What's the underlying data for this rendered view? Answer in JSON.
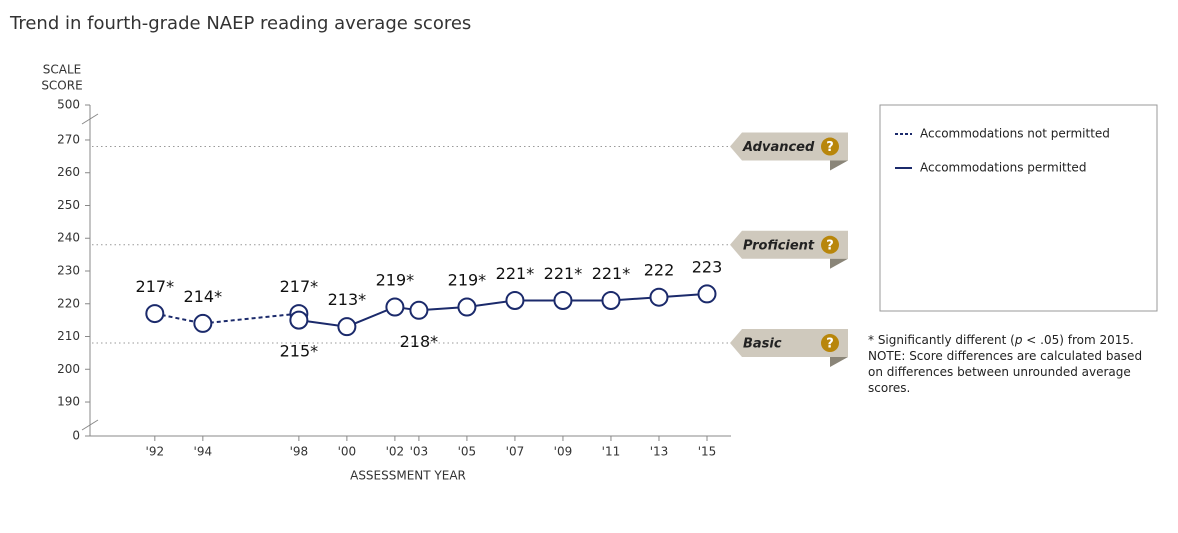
{
  "chart_data": {
    "type": "line",
    "title": "Trend in fourth-grade NAEP reading average scores",
    "y_label": [
      "SCALE",
      "SCORE"
    ],
    "x_label": "ASSESSMENT YEAR",
    "ylim": [
      185,
      275
    ],
    "yticks": [
      190,
      200,
      210,
      220,
      230,
      240,
      250,
      260,
      270
    ],
    "y_break_ticks": [
      0,
      500
    ],
    "xlim": [
      1989.3,
      2016
    ],
    "xticks": [
      {
        "value": 1992,
        "label": "'92"
      },
      {
        "value": 1994,
        "label": "'94"
      },
      {
        "value": 1998,
        "label": "'98"
      },
      {
        "value": 2000,
        "label": "'00"
      },
      {
        "value": 2002,
        "label": "'02"
      },
      {
        "value": 2003,
        "label": "'03"
      },
      {
        "value": 2005,
        "label": "'05"
      },
      {
        "value": 2007,
        "label": "'07"
      },
      {
        "value": 2009,
        "label": "'09"
      },
      {
        "value": 2011,
        "label": "'11"
      },
      {
        "value": 2013,
        "label": "'13"
      },
      {
        "value": 2015,
        "label": "'15"
      }
    ],
    "series": [
      {
        "name": "Accommodations not permitted",
        "color": "#1b2a6b",
        "dashed": true,
        "x": [
          1992,
          1994,
          1998
        ],
        "values": [
          217,
          214,
          217
        ],
        "value_labels": [
          "217*",
          "214*",
          "217*"
        ]
      },
      {
        "name": "Accommodations permitted",
        "color": "#1b2a6b",
        "dashed": false,
        "x": [
          1998,
          2000,
          2002,
          2003,
          2005,
          2007,
          2009,
          2011,
          2013,
          2015
        ],
        "values": [
          215,
          213,
          219,
          218,
          219,
          221,
          221,
          221,
          222,
          223
        ],
        "value_labels": [
          "215*",
          "213*",
          "219*",
          "218*",
          "219*",
          "221*",
          "221*",
          "221*",
          "222",
          "223"
        ]
      }
    ],
    "levels": [
      {
        "name": "Advanced",
        "value": 268
      },
      {
        "name": "Proficient",
        "value": 238
      },
      {
        "name": "Basic",
        "value": 208
      }
    ],
    "footnote": [
      "* Significantly different (",
      "p",
      " < .05) from 2015."
    ],
    "note": "NOTE: Score differences are calculated based on differences between unrounded average scores."
  }
}
